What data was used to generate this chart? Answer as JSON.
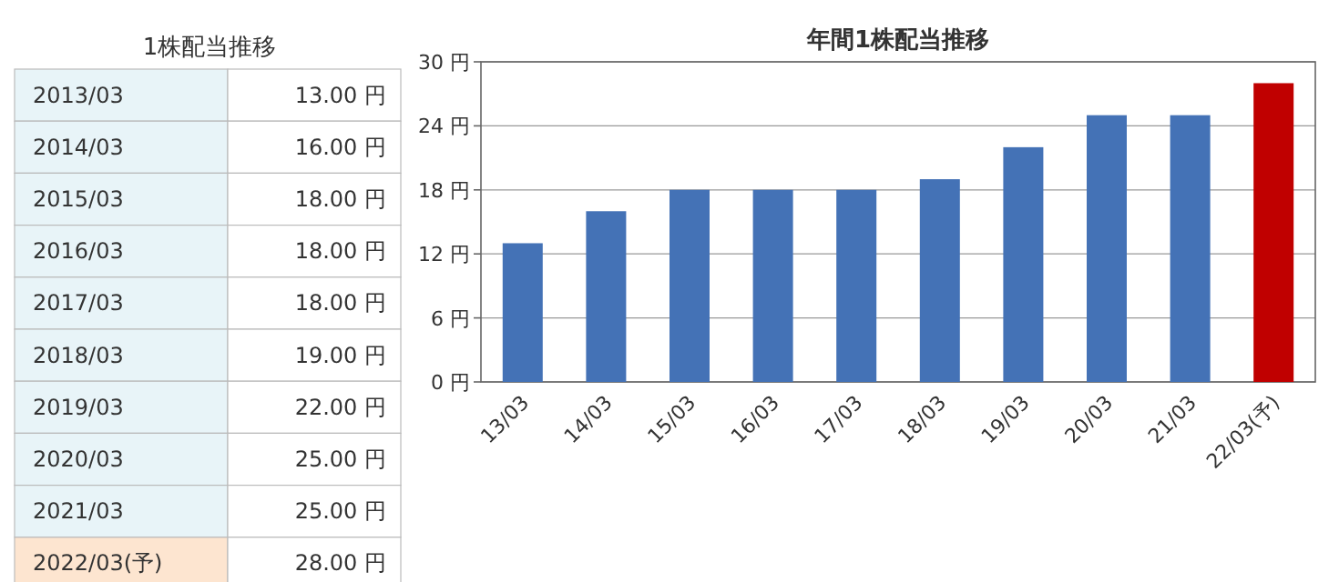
{
  "chart_data": [
    {
      "type": "other",
      "title": "1株配当推移",
      "annotations": [
        "2013/03",
        "13.00 円",
        "2014/03",
        "16.00 円",
        "2015/03",
        "18.00 円",
        "2016/03",
        "18.00 円",
        "2017/03",
        "18.00 円",
        "2018/03",
        "19.00 円",
        "2019/03",
        "22.00 円",
        "2020/03",
        "25.00 円",
        "2021/03",
        "25.00 円",
        "2022/03(予)",
        "28.00 円"
      ]
    },
    {
      "type": "bar",
      "title": "年間1株配当推移",
      "categories": [
        "13/03",
        "14/03",
        "15/03",
        "16/03",
        "17/03",
        "18/03",
        "19/03",
        "20/03",
        "21/03",
        "22/03(予)"
      ],
      "values": [
        13,
        16,
        18,
        18,
        18,
        19,
        22,
        25,
        25,
        28
      ],
      "colors": [
        "#4472b6",
        "#4472b6",
        "#4472b6",
        "#4472b6",
        "#4472b6",
        "#4472b6",
        "#4472b6",
        "#4472b6",
        "#4472b6",
        "#c00000"
      ],
      "ylim": [
        0,
        30
      ],
      "yticks": [
        {
          "value": 0,
          "label": "0 円"
        },
        {
          "value": 6,
          "label": "6 円"
        },
        {
          "value": 12,
          "label": "12 円"
        },
        {
          "value": 18,
          "label": "18 円"
        },
        {
          "value": 24,
          "label": "24 円"
        },
        {
          "value": 30,
          "label": "30 円"
        }
      ],
      "grid": "y"
    }
  ]
}
